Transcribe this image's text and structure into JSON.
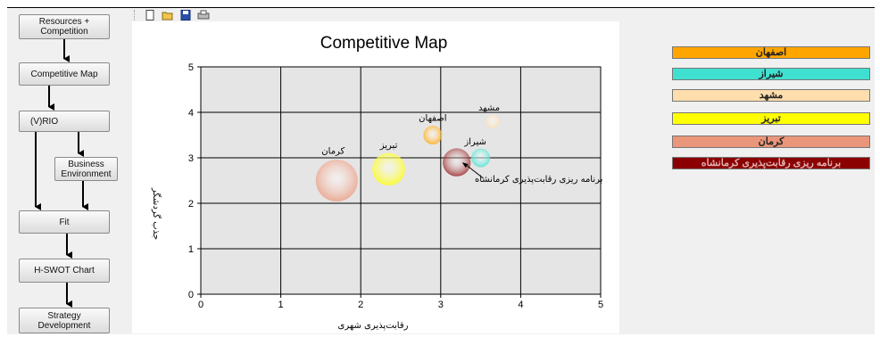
{
  "toolbar": {
    "icons": [
      "new-file-icon",
      "open-folder-icon",
      "save-icon",
      "print-icon"
    ]
  },
  "flow": {
    "resources": "Resources + Competition",
    "competitive_map": "Competitive Map",
    "vrio": "(V)RIO",
    "business_env": "Business Environment",
    "fit": "Fit",
    "hswot": "H-SWOT Chart",
    "strategy": "Strategy Development"
  },
  "legend": [
    {
      "label": "اصفهان",
      "color": "#ffa500"
    },
    {
      "label": "شیراز",
      "color": "#40e0d0"
    },
    {
      "label": "مشهد",
      "color": "#ffdead"
    },
    {
      "label": "تبریز",
      "color": "#ffff00"
    },
    {
      "label": "کرمان",
      "color": "#e9967a"
    },
    {
      "label": "برنامه ریزی رقابت‌پذیری کرمانشاه",
      "color": "#8b0000"
    }
  ],
  "chart_data": {
    "type": "scatter",
    "title": "Competitive Map",
    "xlabel": "رقابت‌پذیری شهری",
    "ylabel": "جذب گردشگر",
    "xlim": [
      0,
      5
    ],
    "ylim": [
      0,
      5
    ],
    "x_ticks": [
      "0",
      "1",
      "2",
      "3",
      "4",
      "5"
    ],
    "y_ticks": [
      "0",
      "1",
      "2",
      "3",
      "4",
      "5"
    ],
    "grid": true,
    "points": [
      {
        "name": "اصفهان",
        "x": 2.9,
        "y": 3.5,
        "size": 1,
        "color": "#ffa500"
      },
      {
        "name": "مشهد",
        "x": 3.65,
        "y": 3.8,
        "size": 0.5,
        "color": "#ffdead"
      },
      {
        "name": "شیراز",
        "x": 3.5,
        "y": 3.0,
        "size": 1,
        "color": "#40e0d0"
      },
      {
        "name": "تبریز",
        "x": 2.35,
        "y": 2.75,
        "size": 2.2,
        "color": "#ffff00"
      },
      {
        "name": "کرمان",
        "x": 1.7,
        "y": 2.5,
        "size": 3,
        "color": "#e9967a"
      },
      {
        "name": "",
        "x": 3.2,
        "y": 2.9,
        "size": 1.8,
        "color": "#8b0000"
      }
    ],
    "annotation": "برنامه ریزی رقابت‌پذیری کرمانشاه"
  }
}
